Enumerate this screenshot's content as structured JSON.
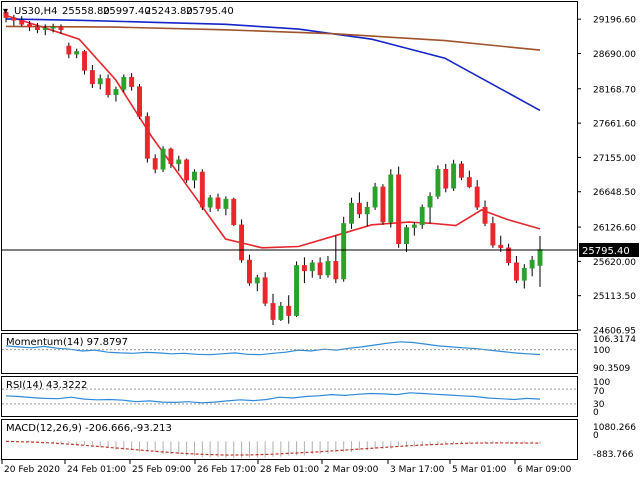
{
  "header": {
    "symbol": "US30,H4",
    "open": "25558.80",
    "high": "25997.40",
    "low": "25243.80",
    "close": "25795.40"
  },
  "colors": {
    "bull": "#2ca02c",
    "bear": "#e8262c",
    "ma_fast": "#e5262c",
    "ma_mid": "#1525c8",
    "ma_slow": "#a0522d",
    "indicator": "#2e8bd9",
    "macd_signal": "#c0392b",
    "price_line": "#000000"
  },
  "time_axis": [
    "20 Feb 2020",
    "24 Feb 01:00",
    "25 Feb 09:00",
    "26 Feb 17:00",
    "28 Feb 01:00",
    "2 Mar 09:00",
    "3 Mar 17:00",
    "5 Mar 01:00",
    "6 Mar 09:00"
  ],
  "price_axis": [
    "29196.60",
    "28690.00",
    "28168.70",
    "27661.60",
    "27155.00",
    "26648.50",
    "26126.60",
    "25620.00",
    "25113.50",
    "24606.95"
  ],
  "current_price_label": "25795.40",
  "panels": {
    "momentum": {
      "title": "Momentum(14) 97.8797",
      "scale": [
        "106.3174",
        "100",
        "90.3509"
      ]
    },
    "rsi": {
      "title": "RSI(14) 43.3222",
      "scale": [
        "100",
        "70",
        "30",
        "0"
      ]
    },
    "macd": {
      "title": "MACD(12,26,9) -206.666,-93.213",
      "scale": [
        "1080.266",
        "0",
        "-883.766"
      ]
    }
  },
  "chart_data": {
    "type": "candlestick",
    "timeframe": "H4",
    "ylim": [
      24606.95,
      29450
    ],
    "candles": [
      [
        29300,
        29320,
        29150,
        29220
      ],
      [
        29220,
        29260,
        29100,
        29180
      ],
      [
        29180,
        29240,
        29090,
        29120
      ],
      [
        29120,
        29170,
        29020,
        29080
      ],
      [
        29080,
        29140,
        28990,
        29040
      ],
      [
        29040,
        29120,
        28960,
        29060
      ],
      [
        29060,
        29130,
        29000,
        29080
      ],
      [
        29080,
        29120,
        28980,
        29040
      ],
      [
        28800,
        28850,
        28620,
        28680
      ],
      [
        28680,
        28760,
        28620,
        28720
      ],
      [
        28720,
        28740,
        28380,
        28440
      ],
      [
        28440,
        28520,
        28180,
        28240
      ],
      [
        28240,
        28380,
        28160,
        28320
      ],
      [
        28320,
        28380,
        28040,
        28080
      ],
      [
        28080,
        28200,
        27980,
        28160
      ],
      [
        28160,
        28380,
        28120,
        28340
      ],
      [
        28340,
        28400,
        28140,
        28200
      ],
      [
        28200,
        28240,
        27720,
        27760
      ],
      [
        27760,
        27820,
        27080,
        27140
      ],
      [
        27140,
        27200,
        26920,
        26980
      ],
      [
        26980,
        27320,
        26940,
        27280
      ],
      [
        27280,
        27300,
        27000,
        27060
      ],
      [
        27060,
        27180,
        26950,
        27120
      ],
      [
        27120,
        27140,
        26780,
        26820
      ],
      [
        26820,
        26980,
        26700,
        26940
      ],
      [
        26940,
        26980,
        26380,
        26420
      ],
      [
        26420,
        26600,
        26350,
        26560
      ],
      [
        26560,
        26620,
        26360,
        26400
      ],
      [
        26400,
        26580,
        26300,
        26540
      ],
      [
        26540,
        26560,
        26140,
        26160
      ],
      [
        26160,
        26240,
        25600,
        25640
      ],
      [
        25640,
        25720,
        25260,
        25300
      ],
      [
        25300,
        25420,
        25180,
        25380
      ],
      [
        25380,
        25460,
        24960,
        25000
      ],
      [
        25000,
        25140,
        24680,
        24760
      ],
      [
        24760,
        25020,
        24740,
        24960
      ],
      [
        24960,
        25120,
        24700,
        24820
      ],
      [
        24820,
        25620,
        24800,
        25560
      ],
      [
        25560,
        25680,
        25300,
        25480
      ],
      [
        25480,
        25640,
        25380,
        25600
      ],
      [
        25600,
        25680,
        25360,
        25420
      ],
      [
        25420,
        25700,
        25380,
        25620
      ],
      [
        25620,
        26000,
        25300,
        25360
      ],
      [
        25360,
        26280,
        25320,
        26180
      ],
      [
        26180,
        26560,
        26100,
        26480
      ],
      [
        26480,
        26640,
        26260,
        26320
      ],
      [
        26320,
        26500,
        26140,
        26420
      ],
      [
        26420,
        26780,
        26380,
        26720
      ],
      [
        26720,
        26760,
        26160,
        26200
      ],
      [
        26200,
        26980,
        26120,
        26900
      ],
      [
        26900,
        27020,
        25820,
        25880
      ],
      [
        25880,
        26160,
        25760,
        26120
      ],
      [
        26120,
        26200,
        26000,
        26160
      ],
      [
        26160,
        26460,
        26100,
        26420
      ],
      [
        26420,
        26640,
        26180,
        26580
      ],
      [
        26580,
        27040,
        26540,
        26980
      ],
      [
        26980,
        27060,
        26640,
        26700
      ],
      [
        26700,
        27120,
        26660,
        27060
      ],
      [
        27060,
        27100,
        26820,
        26860
      ],
      [
        26860,
        26960,
        26700,
        26720
      ],
      [
        26720,
        26820,
        26380,
        26420
      ],
      [
        26420,
        26520,
        26140,
        26180
      ],
      [
        26180,
        26280,
        25820,
        25860
      ],
      [
        25860,
        26000,
        25760,
        25820
      ],
      [
        25820,
        25880,
        25560,
        25600
      ],
      [
        25600,
        25700,
        25300,
        25340
      ],
      [
        25340,
        25580,
        25220,
        25520
      ],
      [
        25520,
        25700,
        25400,
        25640
      ],
      [
        25558.8,
        25997.4,
        25243.8,
        25795.4
      ]
    ],
    "moving_averages": [
      {
        "values": [
          [
            0,
            29250
          ],
          [
            10,
            29080
          ],
          [
            20,
            28900
          ],
          [
            30,
            28300
          ],
          [
            40,
            27450
          ],
          [
            50,
            26700
          ],
          [
            60,
            25950
          ],
          [
            70,
            25820
          ],
          [
            80,
            25840
          ],
          [
            90,
            26000
          ],
          [
            100,
            26160
          ],
          [
            110,
            26200
          ],
          [
            117,
            26180
          ],
          [
            123,
            26150
          ],
          [
            130,
            26380
          ],
          [
            137,
            26240
          ],
          [
            146,
            26100
          ]
        ]
      },
      {
        "values": [
          [
            0,
            29200
          ],
          [
            20,
            29180
          ],
          [
            40,
            29150
          ],
          [
            60,
            29120
          ],
          [
            80,
            29050
          ],
          [
            100,
            28900
          ],
          [
            120,
            28620
          ],
          [
            146,
            27850
          ]
        ]
      },
      {
        "values": [
          [
            0,
            29090
          ],
          [
            30,
            29080
          ],
          [
            60,
            29040
          ],
          [
            90,
            28980
          ],
          [
            120,
            28880
          ],
          [
            146,
            28740
          ]
        ]
      }
    ],
    "momentum": {
      "current": 97.8797,
      "ylim": [
        90.3509,
        106.3174
      ],
      "values": [
        101.6,
        101.2,
        100.8,
        101.4,
        100.6,
        100.2,
        99.4,
        99.8,
        98.9,
        98.6,
        98.4,
        98.8,
        98.6,
        98.2,
        98.4,
        98.0,
        97.8,
        98.2,
        98.6,
        98.0,
        97.8,
        98.4,
        98.9,
        99.8,
        99.4,
        100.2,
        99.8,
        100.6,
        101.2,
        102.0,
        102.8,
        103.4,
        103.1,
        102.4,
        101.6,
        101.2,
        100.8,
        100.4,
        99.8,
        99.2,
        98.6,
        98.2,
        97.9
      ]
    },
    "rsi": {
      "current": 43.3222,
      "ylim": [
        0,
        100
      ],
      "values": [
        52,
        50,
        47,
        45,
        44,
        48,
        43,
        41,
        42,
        40,
        36,
        38,
        35,
        34,
        36,
        33,
        35,
        38,
        41,
        39,
        42,
        48,
        46,
        50,
        52,
        55,
        53,
        56,
        58,
        57,
        55,
        60,
        58,
        56,
        54,
        52,
        50,
        46,
        44,
        42,
        45,
        43
      ]
    },
    "macd": {
      "current": -206.666,
      "signal": -93.213,
      "ylim": [
        -883.766,
        1080.266
      ],
      "signal_values": [
        0,
        -30,
        -80,
        -160,
        -260,
        -360,
        -460,
        -560,
        -640,
        -700,
        -730,
        -720,
        -680,
        -620,
        -560,
        -480,
        -400,
        -320,
        -240,
        -180,
        -130,
        -95,
        -80,
        -85,
        -93
      ]
    }
  }
}
